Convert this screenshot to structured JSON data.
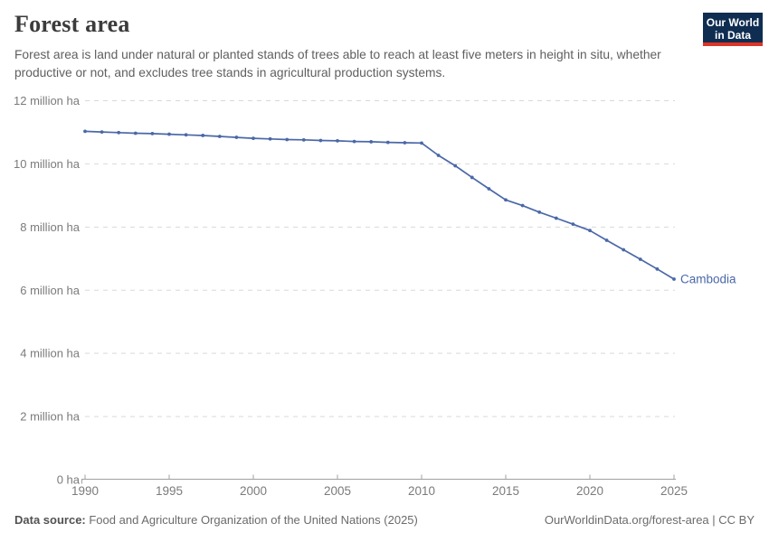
{
  "header": {
    "title": "Forest area",
    "subtitle": "Forest area is land under natural or planted stands of trees able to reach at least five meters in height in situ, whether productive or not, and excludes tree stands in agricultural production systems."
  },
  "logo": {
    "line1": "Our World",
    "line2": "in Data",
    "bg_color": "#0f2d51",
    "bar_color": "#dc3426"
  },
  "chart_data": {
    "type": "line",
    "title": "Forest area",
    "unit": "million ha",
    "x": [
      1990,
      1991,
      1992,
      1993,
      1994,
      1995,
      1996,
      1997,
      1998,
      1999,
      2000,
      2001,
      2002,
      2003,
      2004,
      2005,
      2006,
      2007,
      2008,
      2009,
      2010,
      2011,
      2012,
      2013,
      2014,
      2015,
      2016,
      2017,
      2018,
      2019,
      2020,
      2021,
      2022,
      2023,
      2024,
      2025
    ],
    "series": [
      {
        "name": "Cambodia",
        "color": "#4a68a8",
        "values": [
          11.03,
          11.01,
          10.99,
          10.97,
          10.96,
          10.94,
          10.92,
          10.9,
          10.87,
          10.84,
          10.81,
          10.79,
          10.77,
          10.76,
          10.74,
          10.73,
          10.71,
          10.7,
          10.68,
          10.67,
          10.66,
          10.27,
          9.94,
          9.57,
          9.21,
          8.86,
          8.68,
          8.47,
          8.28,
          8.09,
          7.89,
          7.58,
          7.28,
          6.98,
          6.67,
          6.35
        ]
      }
    ],
    "entity_label": "Cambodia",
    "xticks": [
      1990,
      1995,
      2000,
      2005,
      2010,
      2015,
      2020,
      2025
    ],
    "yticks": [
      {
        "value": 0,
        "label": "0 ha"
      },
      {
        "value": 2,
        "label": "2 million ha"
      },
      {
        "value": 4,
        "label": "4 million ha"
      },
      {
        "value": 6,
        "label": "6 million ha"
      },
      {
        "value": 8,
        "label": "8 million ha"
      },
      {
        "value": 10,
        "label": "10 million ha"
      },
      {
        "value": 12,
        "label": "12 million ha"
      }
    ],
    "xlim": [
      1990,
      2025
    ],
    "ylim": [
      0,
      12
    ],
    "grid": "horizontal dashed",
    "legend_position": "end-of-line label",
    "markers": true
  },
  "footer": {
    "source_label": "Data source:",
    "source_text": " Food and Agriculture Organization of the United Nations (2025)",
    "right_text": "OurWorldinData.org/forest-area | CC BY"
  },
  "colors": {
    "line": "#4a68a8",
    "grid": "#d9d9d9",
    "axis": "#a0a0a0",
    "tick_text": "#7b7b7b",
    "title_text": "#3b3b3b",
    "subtitle_text": "#5f5f5f"
  }
}
